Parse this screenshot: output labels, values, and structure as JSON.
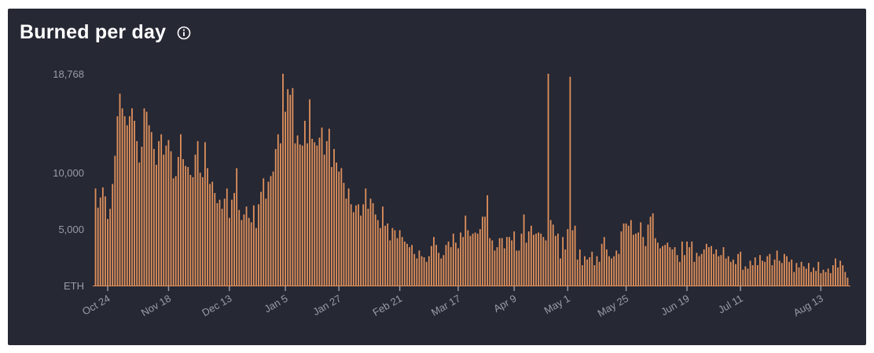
{
  "panel": {
    "title": "Burned per day",
    "info_icon": "info-icon"
  },
  "colors": {
    "background": "#262834",
    "bar": "#e0915c",
    "text": "#9a9ca6",
    "title": "#ffffff"
  },
  "chart_data": {
    "type": "bar",
    "title": "Burned per day",
    "xlabel": "",
    "ylabel": "ETH",
    "ylim": [
      0,
      18768
    ],
    "y_ticks": [
      {
        "value": 0,
        "label": "ETH"
      },
      {
        "value": 5000,
        "label": "5,000"
      },
      {
        "value": 10000,
        "label": "10,000"
      },
      {
        "value": 18768,
        "label": "18,768"
      }
    ],
    "x_ticks": [
      {
        "index": 5,
        "label": "Oct 24"
      },
      {
        "index": 30,
        "label": "Nov 18"
      },
      {
        "index": 55,
        "label": "Dec 13"
      },
      {
        "index": 78,
        "label": "Jan 5"
      },
      {
        "index": 100,
        "label": "Jan 27"
      },
      {
        "index": 125,
        "label": "Feb 21"
      },
      {
        "index": 149,
        "label": "Mar 17"
      },
      {
        "index": 172,
        "label": "Apr 9"
      },
      {
        "index": 194,
        "label": "May 1"
      },
      {
        "index": 218,
        "label": "May 25"
      },
      {
        "index": 243,
        "label": "Jun 19"
      },
      {
        "index": 265,
        "label": "Jul 11"
      },
      {
        "index": 298,
        "label": "Aug 13"
      }
    ],
    "grid": false,
    "legend": "none",
    "values": [
      8600,
      6900,
      7800,
      8700,
      7900,
      5900,
      6800,
      9000,
      11500,
      15000,
      17000,
      15700,
      15000,
      14200,
      15000,
      15700,
      14600,
      12800,
      10900,
      12300,
      15700,
      15400,
      14200,
      13600,
      12100,
      10700,
      12800,
      13400,
      11600,
      12400,
      12900,
      11900,
      9500,
      9700,
      11400,
      13400,
      11200,
      10600,
      10500,
      9800,
      9600,
      11600,
      12800,
      10000,
      9600,
      12700,
      10400,
      9000,
      9200,
      8200,
      7300,
      7600,
      6800,
      7700,
      8600,
      6000,
      7600,
      8200,
      10400,
      6700,
      5800,
      6300,
      7000,
      6000,
      5600,
      7100,
      5100,
      7200,
      8300,
      9500,
      7700,
      9200,
      9700,
      10100,
      12100,
      13400,
      12600,
      18768,
      15400,
      17400,
      16900,
      17500,
      12600,
      13300,
      12500,
      12400,
      14600,
      12600,
      16500,
      13000,
      12700,
      12400,
      13100,
      14000,
      11600,
      12800,
      13900,
      10500,
      12100,
      10900,
      10100,
      10400,
      9100,
      7700,
      8600,
      7200,
      6500,
      7100,
      7200,
      6200,
      7200,
      8600,
      6800,
      7700,
      7300,
      6300,
      5800,
      5100,
      7000,
      5300,
      5500,
      4000,
      5100,
      4900,
      4200,
      4900,
      4300,
      3900,
      3700,
      3400,
      3600,
      2800,
      2400,
      3100,
      2600,
      2500,
      2100,
      2600,
      3500,
      4300,
      3600,
      2900,
      2400,
      2700,
      3600,
      3900,
      3400,
      4600,
      3800,
      3300,
      4700,
      4300,
      6200,
      4900,
      4400,
      4600,
      4700,
      4600,
      5000,
      6100,
      6100,
      8000,
      4200,
      4000,
      3100,
      3400,
      4200,
      4200,
      3300,
      4300,
      4300,
      4000,
      4800,
      3100,
      3100,
      4600,
      6300,
      3800,
      4800,
      5300,
      4500,
      4600,
      4700,
      4600,
      4300,
      4000,
      18768,
      5800,
      5400,
      4400,
      4600,
      2400,
      4300,
      3200,
      5000,
      18500,
      4900,
      5300,
      2300,
      3200,
      1800,
      2600,
      2300,
      2500,
      3000,
      1800,
      2600,
      2100,
      3700,
      4300,
      3200,
      2600,
      2400,
      2600,
      3100,
      2800,
      4800,
      5500,
      5500,
      5300,
      5800,
      4500,
      4600,
      4700,
      5600,
      4300,
      3500,
      5400,
      6100,
      6400,
      4200,
      3800,
      3300,
      3500,
      3600,
      3800,
      3400,
      3200,
      3400,
      2700,
      2100,
      3900,
      2700,
      3900,
      3400,
      3900,
      2100,
      2900,
      2600,
      2800,
      3200,
      3700,
      3400,
      3500,
      2800,
      3200,
      2600,
      2700,
      3400,
      2400,
      2600,
      2100,
      2300,
      1900,
      2800,
      3000,
      1400,
      1700,
      1500,
      2200,
      1800,
      2500,
      1800,
      2700,
      2200,
      2100,
      2600,
      2800,
      1800,
      2300,
      3100,
      2200,
      2000,
      2800,
      2600,
      2100,
      2300,
      1200,
      2000,
      1600,
      2100,
      1700,
      1500,
      2000,
      1200,
      1600,
      1300,
      2100,
      1100,
      1400,
      1200,
      1500,
      1100,
      1800,
      2400,
      1600,
      2200,
      1800,
      1200,
      700
    ]
  }
}
